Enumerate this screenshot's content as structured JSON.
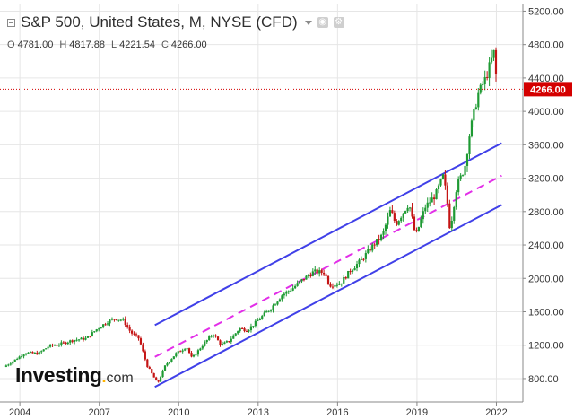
{
  "header": {
    "title": "S&P 500, United States, M, NYSE (CFD)",
    "ohlc": [
      {
        "label": "O",
        "value": "4781.00"
      },
      {
        "label": "H",
        "value": "4817.88"
      },
      {
        "label": "L",
        "value": "4221.54"
      },
      {
        "label": "C",
        "value": "4266.00"
      }
    ]
  },
  "logo": {
    "main": "Investing",
    "dot": ".",
    "suffix": "com"
  },
  "colors": {
    "up": "#1e9a33",
    "down": "#c41414",
    "channel": "#4040e8",
    "midline": "#e22ee8",
    "price_line": "#d40000",
    "price_badge": "#d40000",
    "axis_text": "#333333"
  },
  "chart_data": {
    "type": "candlestick",
    "title": "S&P 500, United States, M, NYSE (CFD)",
    "xlabel": "",
    "ylabel": "",
    "x_ticks": [
      2004,
      2007,
      2010,
      2013,
      2016,
      2019,
      2022
    ],
    "y_ticks": [
      800,
      1200,
      1600,
      2000,
      2400,
      2800,
      3200,
      3600,
      4000,
      4400,
      4800,
      5200
    ],
    "y_tick_labels": [
      "800.00",
      "1200.00",
      "1600.00",
      "2000.00",
      "2400.00",
      "2800.00",
      "3200.00",
      "3600.00",
      "4000.00",
      "4400.00",
      "4800.00",
      "5200.00"
    ],
    "xlim": [
      2003.25,
      2023.0
    ],
    "ylim": [
      520,
      5280
    ],
    "grid": true,
    "current_price": 4266,
    "current_price_label": "4266.00",
    "close_path": [
      [
        2003.4,
        940
      ],
      [
        2003.8,
        1020
      ],
      [
        2004.2,
        1110
      ],
      [
        2004.7,
        1100
      ],
      [
        2005.1,
        1190
      ],
      [
        2005.6,
        1220
      ],
      [
        2006.0,
        1260
      ],
      [
        2006.5,
        1280
      ],
      [
        2006.9,
        1390
      ],
      [
        2007.3,
        1480
      ],
      [
        2007.6,
        1520
      ],
      [
        2007.9,
        1500
      ],
      [
        2008.2,
        1350
      ],
      [
        2008.5,
        1280
      ],
      [
        2008.8,
        960
      ],
      [
        2009.0,
        850
      ],
      [
        2009.2,
        740
      ],
      [
        2009.5,
        960
      ],
      [
        2009.9,
        1100
      ],
      [
        2010.3,
        1180
      ],
      [
        2010.5,
        1040
      ],
      [
        2010.9,
        1200
      ],
      [
        2011.3,
        1340
      ],
      [
        2011.6,
        1200
      ],
      [
        2011.9,
        1250
      ],
      [
        2012.3,
        1400
      ],
      [
        2012.6,
        1380
      ],
      [
        2013.0,
        1500
      ],
      [
        2013.5,
        1650
      ],
      [
        2013.9,
        1800
      ],
      [
        2014.3,
        1880
      ],
      [
        2014.7,
        1990
      ],
      [
        2015.1,
        2080
      ],
      [
        2015.5,
        2070
      ],
      [
        2015.7,
        1920
      ],
      [
        2016.1,
        1940
      ],
      [
        2016.5,
        2100
      ],
      [
        2016.9,
        2220
      ],
      [
        2017.3,
        2380
      ],
      [
        2017.7,
        2520
      ],
      [
        2018.0,
        2820
      ],
      [
        2018.2,
        2650
      ],
      [
        2018.7,
        2900
      ],
      [
        2018.95,
        2500
      ],
      [
        2019.3,
        2850
      ],
      [
        2019.7,
        3000
      ],
      [
        2020.0,
        3230
      ],
      [
        2020.15,
        2900
      ],
      [
        2020.25,
        2580
      ],
      [
        2020.5,
        3100
      ],
      [
        2020.8,
        3320
      ],
      [
        2021.0,
        3750
      ],
      [
        2021.3,
        4200
      ],
      [
        2021.6,
        4400
      ],
      [
        2021.9,
        4700
      ],
      [
        2021.95,
        4766
      ],
      [
        2022.0,
        4266
      ]
    ],
    "channel": {
      "upper": [
        [
          2009.1,
          1440
        ],
        [
          2022.2,
          3620
        ]
      ],
      "lower": [
        [
          2009.1,
          700
        ],
        [
          2022.2,
          2880
        ]
      ],
      "mid": [
        [
          2009.1,
          1060
        ],
        [
          2022.2,
          3230
        ]
      ]
    }
  }
}
